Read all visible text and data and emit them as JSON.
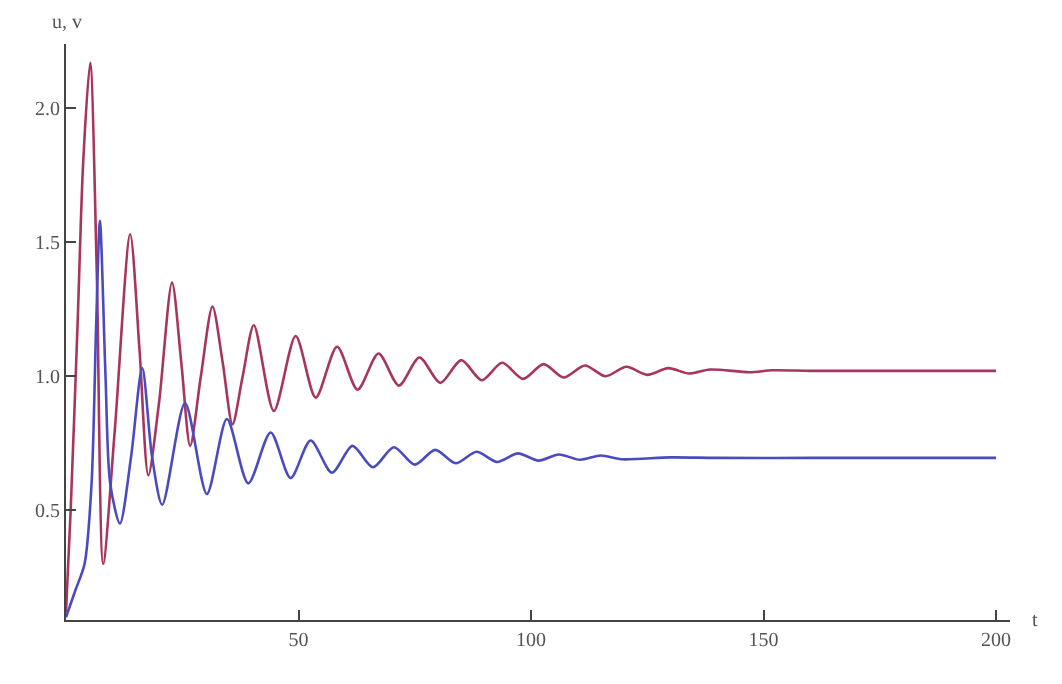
{
  "chart_data": {
    "type": "line",
    "xlabel": "t",
    "ylabel": "u, v",
    "xlim": [
      0,
      203
    ],
    "ylim": [
      0.09,
      2.24
    ],
    "xticks": [
      50,
      100,
      150,
      200
    ],
    "yticks": [
      {
        "value": 0.5,
        "label": "0.5"
      },
      {
        "value": 1.0,
        "label": "1.0"
      },
      {
        "value": 1.5,
        "label": "1.5"
      },
      {
        "value": 2.0,
        "label": "2.0"
      }
    ],
    "marker": "none",
    "line_style": "solid",
    "series": [
      {
        "color": "#a8355f",
        "x": [
          0,
          1,
          2.5,
          3.7,
          5.2,
          6.6,
          8,
          10.5,
          13.8,
          15.8,
          17.7,
          20,
          22.8,
          24.8,
          26.7,
          29,
          31.5,
          33.7,
          35.8,
          38,
          40.4,
          44.7,
          49.4,
          53.7,
          58.3,
          62.7,
          67.2,
          71.6,
          76,
          80.5,
          85,
          89.4,
          93.8,
          98.3,
          102.7,
          107,
          111.6,
          116,
          120.5,
          125,
          129.5,
          134,
          138.5,
          147,
          152,
          160,
          175,
          200
        ],
        "values": [
          0.12,
          0.5,
          1.2,
          1.8,
          2.17,
          1.4,
          0.3,
          0.8,
          1.53,
          1.1,
          0.63,
          0.9,
          1.35,
          1.05,
          0.74,
          1.0,
          1.26,
          1.05,
          0.82,
          1.0,
          1.19,
          0.87,
          1.15,
          0.92,
          1.11,
          0.95,
          1.085,
          0.965,
          1.07,
          0.975,
          1.06,
          0.985,
          1.05,
          0.99,
          1.045,
          0.995,
          1.04,
          1.0,
          1.035,
          1.005,
          1.03,
          1.01,
          1.025,
          1.015,
          1.022,
          1.02,
          1.02,
          1.02
        ]
      },
      {
        "color": "#4b4bc0",
        "x": [
          0,
          2,
          4,
          5.5,
          6.5,
          7.3,
          8.5,
          9.5,
          11.6,
          14,
          16.4,
          18.5,
          20.7,
          25.6,
          30.3,
          34.6,
          39.2,
          44,
          48.3,
          52.6,
          57.2,
          61.6,
          66,
          70.5,
          75,
          79.4,
          83.8,
          88.3,
          92.7,
          97.2,
          101.6,
          106,
          110.5,
          115,
          119.4,
          130,
          140,
          160,
          200
        ],
        "values": [
          0.1,
          0.2,
          0.3,
          0.6,
          1.2,
          1.58,
          1.0,
          0.6,
          0.45,
          0.7,
          1.03,
          0.7,
          0.52,
          0.9,
          0.56,
          0.84,
          0.6,
          0.79,
          0.62,
          0.76,
          0.64,
          0.74,
          0.66,
          0.735,
          0.67,
          0.725,
          0.675,
          0.718,
          0.68,
          0.712,
          0.685,
          0.708,
          0.688,
          0.704,
          0.69,
          0.697,
          0.695,
          0.695,
          0.695
        ]
      }
    ]
  }
}
